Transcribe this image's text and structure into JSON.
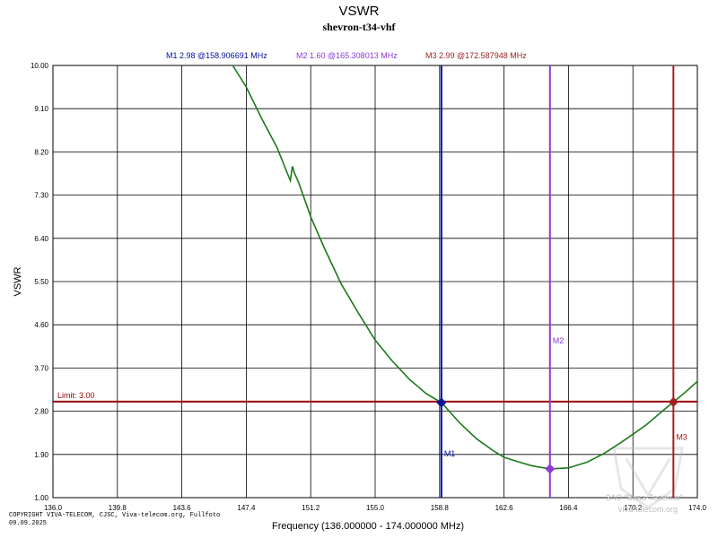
{
  "chart_data": {
    "type": "line",
    "title": "VSWR",
    "subtitle": "shevron-t34-vhf",
    "xlabel": "Frequency (136.000000 - 174.000000 MHz)",
    "ylabel": "VSWR",
    "xlim": [
      136.0,
      174.0
    ],
    "ylim": [
      1.0,
      10.0
    ],
    "x_ticks": [
      "136.0",
      "139.8",
      "143.6",
      "147.4",
      "151.2",
      "155.0",
      "158.8",
      "162.6",
      "166.4",
      "170.2",
      "174.0"
    ],
    "y_ticks": [
      "10.00",
      "9.10",
      "8.20",
      "7.30",
      "6.40",
      "5.50",
      "4.60",
      "3.70",
      "2.80",
      "1.90",
      "1.00"
    ],
    "grid": true,
    "series": [
      {
        "name": "VSWR",
        "color": "#1a7a1a",
        "x": [
          146.6,
          147.4,
          148.3,
          149.2,
          150.0,
          150.12,
          150.25,
          150.5,
          151.2,
          152.0,
          153.0,
          154.0,
          155.0,
          156.0,
          157.0,
          158.0,
          158.91,
          160.0,
          161.0,
          162.0,
          162.6,
          163.5,
          164.3,
          165.31,
          166.4,
          167.5,
          168.5,
          169.5,
          170.2,
          171.0,
          172.0,
          172.59,
          173.3,
          174.0
        ],
        "y": [
          10.0,
          9.55,
          8.9,
          8.3,
          7.6,
          7.9,
          7.75,
          7.55,
          6.85,
          6.2,
          5.45,
          4.85,
          4.28,
          3.85,
          3.47,
          3.17,
          2.98,
          2.55,
          2.22,
          1.97,
          1.84,
          1.74,
          1.66,
          1.6,
          1.62,
          1.74,
          1.92,
          2.15,
          2.32,
          2.52,
          2.82,
          2.99,
          3.2,
          3.42
        ]
      }
    ],
    "limit": {
      "value": 3.0,
      "label": "Limit: 3.00",
      "color": "#990000"
    },
    "markers": [
      {
        "name": "M1",
        "freq": 158.906691,
        "vswr": 2.98,
        "color": "#00109c",
        "readout": "M1  2.98 @158.906691 MHz"
      },
      {
        "name": "M2",
        "freq": 165.308013,
        "vswr": 1.6,
        "color": "#8a3ad6",
        "readout": "M2   1.60 @165.308013 MHz"
      },
      {
        "name": "M3",
        "freq": 172.587948,
        "vswr": 2.99,
        "color": "#a02020",
        "readout": "M3   2.99 @172.587948 MHz"
      }
    ]
  },
  "footer": {
    "copyright_line1": "COPYRIGHT VIVA-TELECOM, CJSC, Viva-telecom.org, Fullfoto",
    "copyright_line2": "09.09.2025",
    "watermark_line1": "ЗАО \"Вива-Телеком\"",
    "watermark_line2": "viva-telecom.org"
  }
}
